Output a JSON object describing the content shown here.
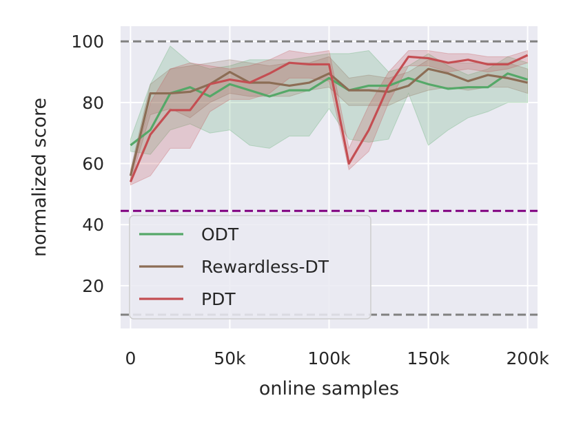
{
  "chart_data": {
    "type": "line",
    "title": "",
    "xlabel": "online samples",
    "ylabel": "normalized score",
    "xlim": [
      -5000,
      205000
    ],
    "ylim": [
      6,
      105
    ],
    "grid": true,
    "x": [
      0,
      10000,
      20000,
      30000,
      40000,
      50000,
      60000,
      70000,
      80000,
      90000,
      100000,
      110000,
      120000,
      130000,
      140000,
      150000,
      160000,
      170000,
      180000,
      190000,
      200000
    ],
    "xticks": [
      0,
      50000,
      100000,
      150000,
      200000
    ],
    "xtick_labels": [
      "0",
      "50k",
      "100k",
      "150k",
      "200k"
    ],
    "yticks": [
      20,
      40,
      60,
      80,
      100
    ],
    "ytick_labels": [
      "20",
      "40",
      "60",
      "80",
      "100"
    ],
    "reference_lines": [
      {
        "y": 100,
        "color": "#808080",
        "style": "dashed"
      },
      {
        "y": 44.5,
        "color": "#800080",
        "style": "dashed"
      },
      {
        "y": 10.5,
        "color": "#808080",
        "style": "dashed"
      }
    ],
    "series": [
      {
        "name": "ODT",
        "color": "#55a868",
        "values": [
          66,
          71,
          83,
          85,
          82,
          86,
          84,
          82,
          84,
          84,
          88,
          84,
          85.5,
          85.5,
          88,
          86,
          84.5,
          85,
          85,
          89.5,
          87.5
        ],
        "lower": [
          64,
          63,
          71,
          73,
          70,
          71,
          66,
          65,
          69,
          69,
          78,
          68,
          67,
          68,
          83,
          66,
          71,
          75,
          77,
          80,
          80
        ],
        "upper": [
          68,
          86,
          98.5,
          93,
          91,
          92,
          94,
          94,
          94,
          95,
          96,
          96,
          97,
          90,
          92,
          96,
          92,
          89,
          91,
          95,
          93
        ]
      },
      {
        "name": "Rewardless-DT",
        "color": "#8c6d55",
        "values": [
          56,
          83,
          83,
          83.5,
          86,
          90,
          86.5,
          86.5,
          85.5,
          86.5,
          89.5,
          84,
          84,
          83.5,
          85.5,
          91,
          89.5,
          87,
          89,
          88,
          86.5
        ],
        "lower": [
          54,
          76,
          78,
          75,
          80,
          83,
          82,
          82,
          82,
          84,
          85,
          79,
          79,
          79,
          82,
          84,
          85,
          84,
          85,
          85,
          83
        ],
        "upper": [
          58,
          86,
          91,
          92,
          93,
          94,
          93,
          92,
          93,
          93,
          95,
          88,
          89,
          88,
          90,
          94,
          93,
          93,
          93,
          93,
          91
        ]
      },
      {
        "name": "PDT",
        "color": "#c44e52",
        "values": [
          54,
          69.5,
          77.5,
          77.5,
          86,
          87.5,
          86.5,
          89.5,
          93,
          92.5,
          92.5,
          60,
          71,
          85.5,
          95,
          94.5,
          93,
          94,
          92.5,
          92.5,
          95.5
        ],
        "lower": [
          53,
          56,
          65,
          65,
          77,
          81,
          81,
          83,
          88,
          88,
          87,
          58,
          64,
          80,
          92,
          92,
          90,
          91,
          90,
          91,
          93
        ],
        "upper": [
          55,
          80,
          91,
          93,
          92,
          91,
          92,
          94,
          97,
          96,
          97,
          65,
          79,
          90,
          97,
          97,
          96,
          96,
          95,
          95,
          97
        ]
      }
    ],
    "legend": {
      "position": "lower-left",
      "entries": [
        "ODT",
        "Rewardless-DT",
        "PDT"
      ]
    }
  }
}
